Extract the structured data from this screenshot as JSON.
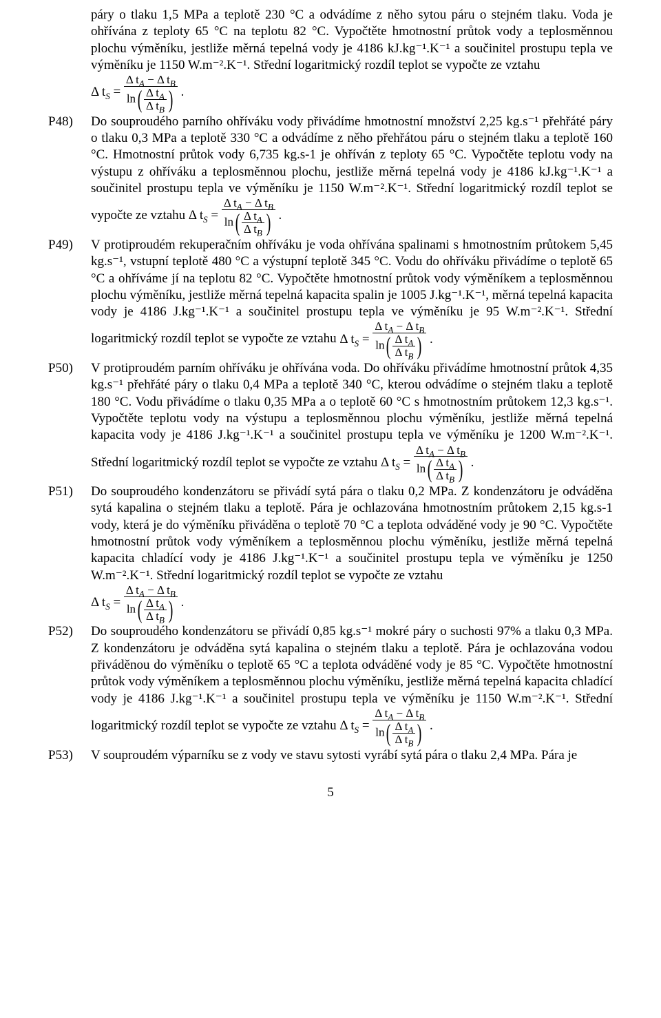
{
  "intro": {
    "text": "páry o tlaku 1,5 MPa a teplotě 230 °C a odvádíme z něho sytou páru o stejném tlaku. Voda je ohřívána z teploty 65 °C na teplotu 82 °C. Vypočtěte hmotnostní průtok vody a teplosměnnou plochu výměníku, jestliže měrná tepelná vody je 4186 kJ.kg⁻¹.K⁻¹ a součinitel prostupu tepla ve výměníku je 1150 W.m⁻².K⁻¹. Střední logaritmický rozdíl teplot se vypočte ze vztahu"
  },
  "items": [
    {
      "label": "P48)",
      "text_before": "Do souproudého parního ohříváku vody přivádíme hmotnostní množství 2,25 kg.s⁻¹ přehřáté páry o tlaku 0,3 MPa a teplotě 330 °C a odvádíme z něho přehřátou páru o stejném tlaku a teplotě 160 °C. Hmotnostní průtok vody 6,735 kg.s-1 je ohříván z teploty 65 °C. Vypočtěte teplotu vody na výstupu z ohříváku a teplosměnnou plochu, jestliže měrná tepelná vody je 4186 kJ.kg⁻¹.K⁻¹ a součinitel prostupu tepla ve výměníku je 1150 W.m⁻².K⁻¹. Střední logaritmický rozdíl teplot se vypočte ze vztahu",
      "text_after": ""
    },
    {
      "label": "P49)",
      "text_before": "V protiproudém rekuperačním ohříváku je voda ohřívána spalinami s hmotnostním průtokem 5,45 kg.s⁻¹, vstupní teplotě 480 °C a výstupní teplotě 345 °C. Vodu do ohříváku přivádíme o teplotě 65 °C a ohříváme jí na teplotu 82 °C. Vypočtěte hmotnostní průtok vody výměníkem a teplosměnnou plochu výměníku, jestliže měrná tepelná kapacita spalin je 1005 J.kg⁻¹.K⁻¹, měrná tepelná kapacita vody je 4186 J.kg⁻¹.K⁻¹ a součinitel prostupu tepla ve výměníku je 95 W.m⁻².K⁻¹. Střední logaritmický rozdíl teplot se vypočte ze vztahu",
      "text_after": ""
    },
    {
      "label": "P50)",
      "text_before": "V protiproudém parním ohříváku je ohřívána voda. Do ohříváku přivádíme hmotnostní průtok 4,35 kg.s⁻¹ přehřáté páry o tlaku 0,4 MPa a teplotě 340 °C, kterou odvádíme o stejném tlaku a teplotě 180 °C. Vodu přivádíme o tlaku 0,35 MPa a o teplotě 60 °C s hmotnostním průtokem 12,3 kg.s⁻¹. Vypočtěte teplotu vody na výstupu a teplosměnnou plochu výměníku, jestliže měrná tepelná kapacita vody je 4186 J.kg⁻¹.K⁻¹ a součinitel prostupu tepla ve výměníku je 1200 W.m⁻².K⁻¹. Střední logaritmický rozdíl teplot se vypočte ze vztahu",
      "text_after": ""
    },
    {
      "label": "P51)",
      "text_before": "Do souproudého kondenzátoru se přivádí sytá pára o tlaku 0,2 MPa. Z kondenzátoru je odváděna sytá kapalina o stejném tlaku a teplotě. Pára je ochlazována hmotnostním průtokem 2,15 kg.s-1 vody, která je do výměníku přiváděna o teplotě 70 °C a teplota odváděné vody je 90 °C. Vypočtěte hmotnostní průtok vody výměníkem a teplosměnnou plochu výměníku, jestliže měrná tepelná kapacita chladící vody je 4186 J.kg⁻¹.K⁻¹ a součinitel prostupu tepla ve výměníku je 1250 W.m⁻².K⁻¹. Střední logaritmický rozdíl teplot se vypočte ze vztahu",
      "formula_pos": "below"
    },
    {
      "label": "P52)",
      "text_before": "Do souproudého kondenzátoru se přivádí 0,85 kg.s⁻¹ mokré páry o suchosti 97% a tlaku 0,3 MPa. Z kondenzátoru je odváděna sytá kapalina o stejném tlaku a teplotě. Pára je ochlazována vodou přiváděnou do výměníku o teplotě 65 °C a teplota odváděné vody je 85 °C. Vypočtěte hmotnostní průtok vody výměníkem a teplosměnnou plochu výměníku, jestliže měrná tepelná kapacita chladící vody je 4186 J.kg⁻¹.K⁻¹ a součinitel prostupu tepla ve výměníku je 1150 W.m⁻².K⁻¹. Střední logaritmický rozdíl teplot se vypočte ze vztahu",
      "text_after": ""
    },
    {
      "label": "P53)",
      "text_before": "V souproudém výparníku se z vody ve stavu sytosti vyrábí sytá pára o tlaku 2,4 MPa. Pára je",
      "no_formula": true
    }
  ],
  "formula": {
    "lhs": "Δ t",
    "lhs_sub": "S",
    "eq": " = ",
    "num_a": "Δ t",
    "num_a_sub": "A",
    "minus": " − ",
    "num_b": "Δ t",
    "num_b_sub": "B",
    "den_ln": "ln",
    "den_frac_a": "Δ t",
    "den_frac_a_sub": "A",
    "den_frac_b": "Δ t",
    "den_frac_b_sub": "B"
  },
  "page": "5"
}
